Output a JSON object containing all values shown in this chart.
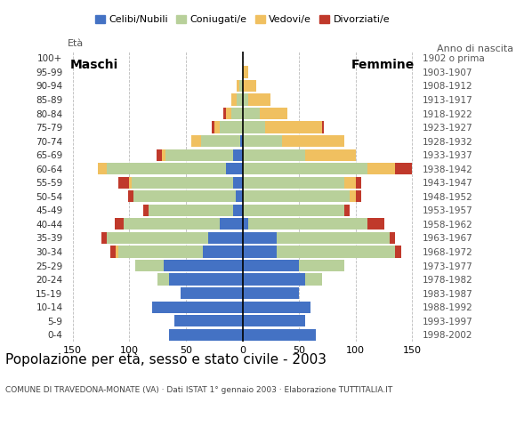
{
  "age_groups": [
    "0-4",
    "5-9",
    "10-14",
    "15-19",
    "20-24",
    "25-29",
    "30-34",
    "35-39",
    "40-44",
    "45-49",
    "50-54",
    "55-59",
    "60-64",
    "65-69",
    "70-74",
    "75-79",
    "80-84",
    "85-89",
    "90-94",
    "95-99",
    "100+"
  ],
  "birth_years": [
    "1998-2002",
    "1993-1997",
    "1988-1992",
    "1983-1987",
    "1978-1982",
    "1973-1977",
    "1968-1972",
    "1963-1967",
    "1958-1962",
    "1953-1957",
    "1948-1952",
    "1943-1947",
    "1938-1942",
    "1933-1937",
    "1928-1932",
    "1923-1927",
    "1918-1922",
    "1913-1917",
    "1908-1912",
    "1903-1907",
    "1902 o prima"
  ],
  "males": {
    "celibe": [
      65,
      60,
      80,
      55,
      65,
      70,
      35,
      30,
      20,
      8,
      6,
      8,
      15,
      8,
      2,
      0,
      0,
      0,
      0,
      0,
      0
    ],
    "coniugato": [
      0,
      0,
      0,
      0,
      10,
      25,
      75,
      90,
      85,
      75,
      90,
      90,
      105,
      60,
      35,
      20,
      10,
      5,
      3,
      0,
      0
    ],
    "vedovo": [
      0,
      0,
      0,
      0,
      0,
      0,
      2,
      0,
      0,
      0,
      0,
      2,
      8,
      3,
      8,
      5,
      5,
      5,
      2,
      0,
      0
    ],
    "divorziato": [
      0,
      0,
      0,
      0,
      0,
      0,
      5,
      5,
      8,
      5,
      5,
      10,
      0,
      5,
      0,
      2,
      2,
      0,
      0,
      0,
      0
    ]
  },
  "females": {
    "nubile": [
      65,
      55,
      60,
      50,
      55,
      50,
      30,
      30,
      5,
      0,
      0,
      0,
      0,
      0,
      0,
      0,
      0,
      0,
      0,
      0,
      0
    ],
    "coniugata": [
      0,
      0,
      0,
      0,
      15,
      40,
      105,
      100,
      105,
      90,
      95,
      90,
      110,
      55,
      35,
      20,
      15,
      5,
      0,
      0,
      0
    ],
    "vedova": [
      0,
      0,
      0,
      0,
      0,
      0,
      0,
      0,
      0,
      0,
      5,
      10,
      25,
      45,
      55,
      50,
      25,
      20,
      12,
      5,
      0
    ],
    "divorziata": [
      0,
      0,
      0,
      0,
      0,
      0,
      5,
      5,
      15,
      5,
      5,
      5,
      15,
      0,
      0,
      2,
      0,
      0,
      0,
      0,
      0
    ]
  },
  "colors": {
    "celibe": "#4472c4",
    "coniugato": "#b8d09a",
    "vedovo": "#f0c060",
    "divorziato": "#c0392b"
  },
  "xlim": 155,
  "title": "Popolazione per età, sesso e stato civile - 2003",
  "subtitle": "COMUNE DI TRAVEDONA-MONATE (VA) · Dati ISTAT 1° gennaio 2003 · Elaborazione TUTTITALIA.IT",
  "legend_labels": [
    "Celibi/Nubili",
    "Coniugati/e",
    "Vedovi/e",
    "Divorziati/e"
  ],
  "xlabel_label": "Età",
  "ylabel_right": "Anno di nascita"
}
